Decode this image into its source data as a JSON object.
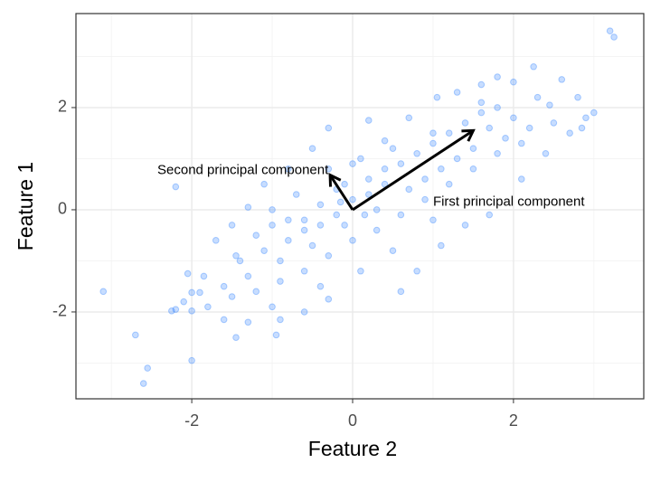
{
  "chart_data": {
    "type": "scatter",
    "x_label": "Feature 2",
    "y_label": "Feature 1",
    "xlim": [
      -3.44,
      3.62
    ],
    "ylim": [
      -3.7,
      3.84
    ],
    "xticks": [
      -2,
      0,
      2
    ],
    "yticks": [
      -2,
      0,
      2
    ],
    "x_minor_ticks": [
      -3,
      -1,
      1,
      3
    ],
    "y_minor_ticks": [
      -3,
      -1,
      1,
      3
    ],
    "grid": true,
    "series": [
      {
        "color": "#1f77ff",
        "x": [
          3.2,
          3.25,
          -3.1,
          -2.2,
          -2.6,
          -2.55,
          -2.0,
          -2.7,
          2.25,
          -0.3,
          -2.25,
          -2.2,
          -2.0,
          -1.9,
          -2.0,
          -2.1,
          -2.05,
          -1.85,
          -1.6,
          -1.45,
          -1.3,
          -0.95,
          -0.9,
          -0.6,
          -0.3,
          0.6,
          0.8,
          1.1,
          1.4,
          1.7,
          2.1,
          2.4,
          2.7,
          2.9,
          2.8,
          2.6,
          2.45,
          2.0,
          1.8,
          1.6,
          1.3,
          1.05,
          0.7,
          0.4,
          0.2,
          -0.5,
          -0.8,
          -1.1,
          -1.3,
          -1.5,
          -1.7,
          -1.45,
          -1.2,
          -1.0,
          -0.8,
          -0.6,
          -0.4,
          -0.2,
          0.0,
          0.2,
          0.4,
          0.6,
          0.8,
          1.0,
          1.2,
          1.4,
          1.6,
          1.8,
          2.0,
          2.2,
          2.3,
          1.9,
          1.5,
          1.1,
          0.7,
          0.3,
          -0.1,
          -0.5,
          -0.9,
          -1.3,
          -1.6,
          -1.8,
          -1.5,
          -1.2,
          -0.9,
          -0.6,
          -0.3,
          0.0,
          0.3,
          0.6,
          0.9,
          1.2,
          1.5,
          1.8,
          2.1,
          2.5,
          1.0,
          0.5,
          0.1,
          -0.4,
          -1.0,
          -0.7,
          -1.0,
          -0.3,
          0.1,
          0.5,
          -0.2,
          0.2,
          -0.6,
          -1.4,
          -1.1,
          0.9,
          1.3,
          1.7,
          0.4,
          -0.1,
          -0.8,
          1.6,
          0.0,
          -0.4,
          2.85,
          3.0,
          1.0,
          0.15,
          -0.15
        ],
        "values": [
          3.5,
          3.38,
          -1.6,
          0.45,
          -3.4,
          -3.1,
          -2.95,
          -2.45,
          2.8,
          1.6,
          -1.98,
          -1.95,
          -1.62,
          -1.62,
          -1.98,
          -1.8,
          -1.25,
          -1.3,
          -2.15,
          -2.5,
          -2.2,
          -2.45,
          -2.15,
          -2.0,
          -1.75,
          -1.6,
          -1.2,
          -0.7,
          -0.3,
          -0.1,
          0.6,
          1.1,
          1.5,
          1.8,
          2.2,
          2.55,
          2.05,
          2.5,
          2.6,
          2.45,
          2.3,
          2.2,
          1.8,
          1.35,
          1.75,
          1.2,
          0.8,
          0.5,
          0.05,
          -0.3,
          -0.6,
          -0.9,
          -0.5,
          -0.3,
          -0.6,
          -0.2,
          0.1,
          0.4,
          0.2,
          0.6,
          0.5,
          0.9,
          1.1,
          1.3,
          1.5,
          1.7,
          1.9,
          2.0,
          1.8,
          1.6,
          2.2,
          1.4,
          1.2,
          0.8,
          0.4,
          0.0,
          -0.3,
          -0.7,
          -1.0,
          -1.3,
          -1.5,
          -1.9,
          -1.7,
          -1.6,
          -1.4,
          -1.2,
          -0.9,
          -0.6,
          -0.4,
          -0.1,
          0.2,
          0.5,
          0.8,
          1.1,
          1.3,
          1.7,
          -0.2,
          -0.8,
          -1.2,
          -1.5,
          -1.9,
          0.3,
          0.0,
          0.8,
          1.0,
          1.2,
          -0.1,
          0.3,
          -0.4,
          -1.0,
          -0.8,
          0.6,
          1.0,
          1.6,
          0.8,
          0.5,
          -0.2,
          2.1,
          0.9,
          -0.3,
          1.6,
          1.9,
          1.5,
          -0.1,
          0.15
        ]
      }
    ],
    "arrows": [
      {
        "label": "First principal component",
        "x": [
          0,
          1.5
        ],
        "y": [
          0,
          1.55
        ],
        "label_x": 1.0,
        "label_y": 0.15,
        "label_anchor": "start"
      },
      {
        "label": "Second principal component",
        "x": [
          0,
          -0.28
        ],
        "y": [
          0,
          0.68
        ],
        "label_x": -0.3,
        "label_y": 0.77,
        "label_anchor": "end"
      }
    ],
    "arrow_color": "#000000"
  }
}
